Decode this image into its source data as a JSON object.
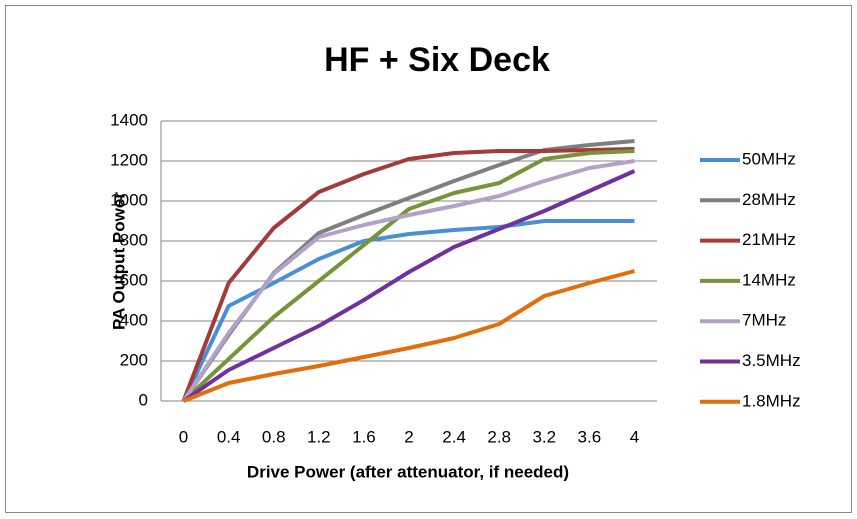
{
  "chart_data": {
    "type": "line",
    "title": "HF + Six Deck",
    "x_label": "Drive Power (after attenuator, if needed)",
    "y_label": "PA Output Power",
    "categories": [
      "0",
      "0.4",
      "0.8",
      "1.2",
      "1.6",
      "2",
      "2.4",
      "2.8",
      "3.2",
      "3.6",
      "4"
    ],
    "ylim": [
      0,
      1400
    ],
    "yticks": [
      0,
      200,
      400,
      600,
      800,
      1000,
      1200,
      1400
    ],
    "grid": true,
    "legend": "right",
    "series": [
      {
        "name": "50MHz",
        "color": "#4a8fd6",
        "values": [
          0,
          475,
          590,
          710,
          800,
          835,
          855,
          870,
          900,
          900,
          900
        ]
      },
      {
        "name": "28MHz",
        "color": "#7f7f7f",
        "values": [
          0,
          330,
          640,
          840,
          930,
          1015,
          1100,
          1180,
          1255,
          1280,
          1300
        ]
      },
      {
        "name": "21MHz",
        "color": "#a33b39",
        "values": [
          0,
          590,
          865,
          1045,
          1135,
          1210,
          1240,
          1250,
          1250,
          1255,
          1260
        ]
      },
      {
        "name": "14MHz",
        "color": "#77933c",
        "values": [
          0,
          210,
          420,
          600,
          780,
          960,
          1040,
          1090,
          1210,
          1240,
          1250
        ]
      },
      {
        "name": "7MHz",
        "color": "#b3a2c7",
        "values": [
          0,
          340,
          635,
          820,
          880,
          930,
          975,
          1025,
          1100,
          1165,
          1200
        ]
      },
      {
        "name": "3.5MHz",
        "color": "#7030a0",
        "values": [
          0,
          155,
          265,
          375,
          505,
          645,
          770,
          860,
          950,
          1050,
          1150
        ]
      },
      {
        "name": "1.8MHz",
        "color": "#e46c0a",
        "values": [
          0,
          90,
          135,
          175,
          220,
          265,
          315,
          385,
          525,
          590,
          650
        ]
      }
    ]
  }
}
